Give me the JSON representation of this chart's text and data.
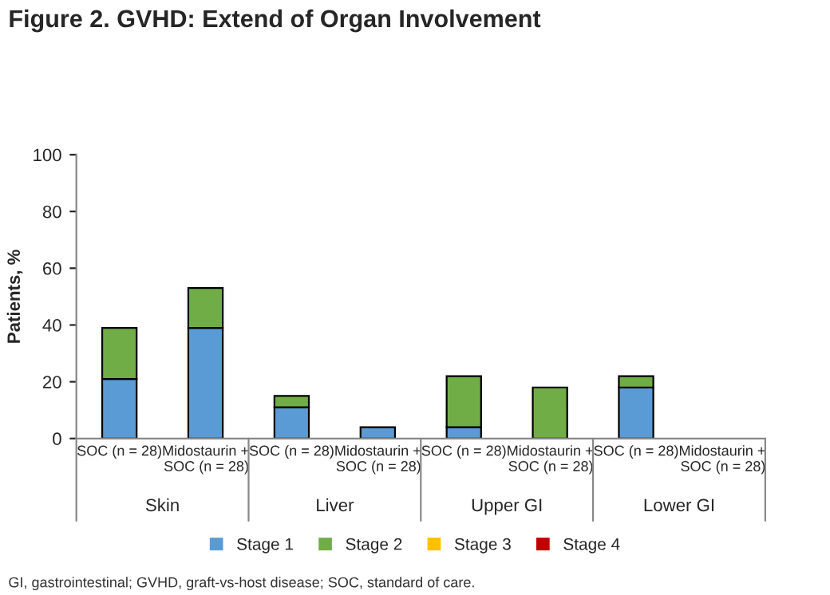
{
  "chart_data": {
    "type": "bar",
    "title": "Figure 2. GVHD: Extend of Organ Involvement",
    "ylabel": "Patients, %",
    "categories": [
      "SOC (n = 28)",
      "Midostaurin +\nSOC (n = 28)",
      "SOC (n = 28)",
      "Midostaurin +\nSOC (n = 28)",
      "SOC (n = 28)",
      "Midostaurin +\nSOC (n = 28)",
      "SOC (n = 28)",
      "Midostaurin +\nSOC (n = 28)"
    ],
    "series": [
      {
        "name": "Stage 1",
        "color": "#5b9bd5",
        "values": [
          21,
          39,
          11,
          4,
          4,
          0,
          18,
          0
        ]
      },
      {
        "name": "Stage 2",
        "color": "#70ad47",
        "values": [
          18,
          14,
          4,
          0,
          18,
          18,
          4,
          0
        ]
      },
      {
        "name": "Stage 3",
        "color": "#ffc000",
        "values": [
          0,
          0,
          0,
          0,
          0,
          0,
          0,
          0
        ]
      },
      {
        "name": "Stage 4",
        "color": "#c00000",
        "values": [
          0,
          0,
          0,
          0,
          0,
          0,
          0,
          0
        ]
      }
    ],
    "stacked": true,
    "ylim": [
      0,
      100
    ],
    "yticks": [
      0,
      20,
      40,
      60,
      80,
      100
    ],
    "legend": "bottom",
    "annotations": [
      "Skin",
      "Liver",
      "Upper GI",
      "Lower GI",
      "GI, gastrointestinal; GVHD, graft-vs-host disease; SOC, standard of care."
    ]
  }
}
